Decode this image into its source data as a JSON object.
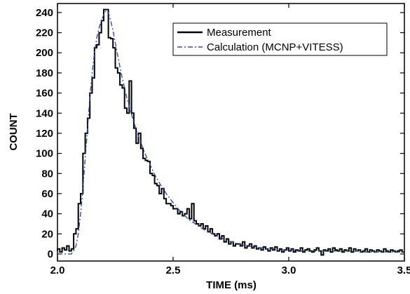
{
  "chart_data": {
    "type": "line",
    "x_label": "TIME (ms)",
    "y_label": "COUNT",
    "xlim": [
      2.0,
      3.5
    ],
    "ylim": [
      -7,
      249
    ],
    "xticks": [
      {
        "value": 2,
        "label": "2.0"
      },
      2.5,
      {
        "value": 3,
        "label": "3.0"
      },
      3.5
    ],
    "yticks": [
      0,
      20,
      40,
      60,
      80,
      100,
      120,
      140,
      160,
      180,
      200,
      220,
      240
    ],
    "legend": "upper right",
    "x": [
      2.0,
      2.01,
      2.02,
      2.03,
      2.04,
      2.05,
      2.06,
      2.07,
      2.08,
      2.09,
      2.1,
      2.11,
      2.12,
      2.13,
      2.14,
      2.15,
      2.16,
      2.17,
      2.18,
      2.19,
      2.2,
      2.21,
      2.22,
      2.23,
      2.24,
      2.25,
      2.26,
      2.27,
      2.28,
      2.29,
      2.3,
      2.31,
      2.32,
      2.33,
      2.34,
      2.35,
      2.36,
      2.37,
      2.38,
      2.39,
      2.4,
      2.41,
      2.42,
      2.43,
      2.44,
      2.45,
      2.46,
      2.47,
      2.48,
      2.49,
      2.5,
      2.51,
      2.52,
      2.53,
      2.54,
      2.55,
      2.56,
      2.57,
      2.58,
      2.59,
      2.6,
      2.61,
      2.62,
      2.63,
      2.64,
      2.65,
      2.66,
      2.67,
      2.68,
      2.69,
      2.7,
      2.71,
      2.72,
      2.73,
      2.74,
      2.75,
      2.76,
      2.77,
      2.78,
      2.79,
      2.8,
      2.81,
      2.82,
      2.83,
      2.84,
      2.85,
      2.86,
      2.87,
      2.88,
      2.89,
      2.9,
      2.91,
      2.92,
      2.93,
      2.94,
      2.95,
      2.96,
      2.97,
      2.98,
      2.99,
      3.0,
      3.01,
      3.02,
      3.03,
      3.04,
      3.05,
      3.06,
      3.07,
      3.08,
      3.09,
      3.1,
      3.11,
      3.12,
      3.13,
      3.14,
      3.15,
      3.16,
      3.17,
      3.18,
      3.19,
      3.2,
      3.21,
      3.22,
      3.23,
      3.24,
      3.25,
      3.26,
      3.27,
      3.28,
      3.29,
      3.3,
      3.31,
      3.32,
      3.33,
      3.34,
      3.35,
      3.36,
      3.37,
      3.38,
      3.39,
      3.4,
      3.41,
      3.42,
      3.43,
      3.44,
      3.45,
      3.46,
      3.47,
      3.48,
      3.49,
      3.5
    ],
    "series": [
      {
        "name": "Measurement",
        "color": "#000000",
        "style": "step",
        "values": [
          3,
          5,
          2,
          6,
          4,
          8,
          3,
          5,
          20,
          25,
          50,
          60,
          100,
          120,
          135,
          160,
          175,
          205,
          208,
          220,
          232,
          243,
          243,
          215,
          214,
          205,
          185,
          180,
          168,
          165,
          145,
          140,
          172,
          140,
          125,
          110,
          120,
          105,
          95,
          93,
          92,
          80,
          78,
          70,
          68,
          60,
          65,
          55,
          50,
          50,
          48,
          45,
          45,
          40,
          42,
          38,
          40,
          45,
          35,
          50,
          33,
          30,
          28,
          30,
          25,
          28,
          22,
          25,
          20,
          18,
          20,
          15,
          18,
          12,
          15,
          10,
          12,
          8,
          10,
          10,
          8,
          12,
          6,
          8,
          10,
          6,
          8,
          5,
          6,
          4,
          7,
          5,
          3,
          6,
          4,
          7,
          3,
          5,
          2,
          4,
          6,
          3,
          5,
          2,
          4,
          3,
          6,
          2,
          4,
          5,
          3,
          2,
          4,
          6,
          3,
          -1,
          4,
          3,
          5,
          2,
          6,
          4,
          3,
          5,
          2,
          4,
          3,
          6,
          2,
          5,
          3,
          4,
          2,
          3,
          5,
          2,
          4,
          3,
          2,
          4,
          3,
          2,
          5,
          3,
          2,
          4,
          3,
          2,
          3,
          4,
          2
        ]
      },
      {
        "name": "Calculation (MCNP+VITESS)",
        "color": "#2b4fa8",
        "style": "dashdot",
        "values": [
          0,
          0,
          0,
          0,
          0,
          0,
          0,
          3,
          8,
          20,
          40,
          65,
          95,
          125,
          155,
          180,
          200,
          215,
          225,
          232,
          238,
          242,
          240,
          232,
          222,
          210,
          198,
          186,
          175,
          165,
          155,
          147,
          139,
          131,
          124,
          117,
          111,
          105,
          99,
          94,
          89,
          84,
          79,
          75,
          71,
          67,
          64,
          60,
          57,
          54,
          51,
          48,
          45,
          43,
          41,
          38,
          36,
          34,
          32,
          31,
          29,
          28,
          26,
          25,
          23,
          22,
          21,
          20,
          19,
          18,
          17,
          16,
          15,
          14,
          13,
          12,
          12,
          11,
          10,
          10,
          9,
          9,
          8,
          8,
          7,
          7,
          7,
          6,
          6,
          6,
          5,
          5,
          5,
          5,
          5,
          4,
          4,
          4,
          4,
          4,
          4,
          4,
          4,
          3,
          3,
          3,
          3,
          3,
          3,
          3,
          3,
          3,
          3,
          3,
          3,
          3,
          3,
          3,
          3,
          3,
          3,
          3,
          3,
          3,
          3,
          3,
          3,
          3,
          3,
          3,
          3,
          2,
          2,
          2,
          2,
          2,
          2,
          2,
          2,
          2,
          2,
          2,
          2,
          2,
          2,
          2,
          2,
          2,
          2,
          2,
          2
        ]
      }
    ]
  }
}
